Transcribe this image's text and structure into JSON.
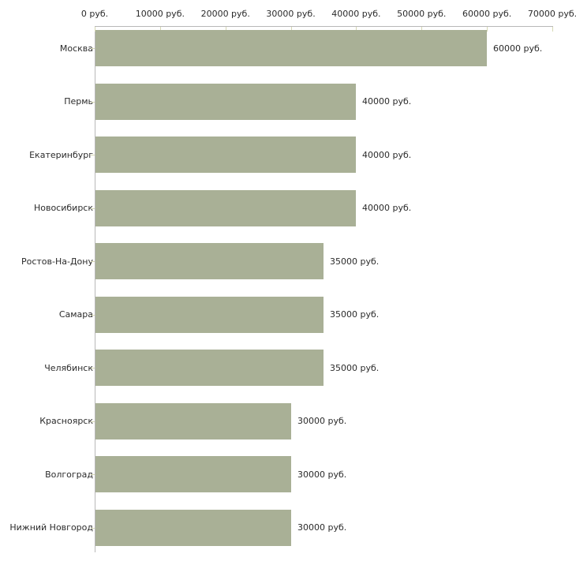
{
  "chart_data": {
    "type": "bar",
    "orientation": "horizontal",
    "title": "",
    "xlabel": "",
    "ylabel": "",
    "categories": [
      "Москва",
      "Пермь",
      "Екатеринбург",
      "Новосибирск",
      "Ростов-На-Дону",
      "Самара",
      "Челябинск",
      "Красноярск",
      "Волгоград",
      "Нижний Новгород"
    ],
    "values": [
      60000,
      40000,
      40000,
      40000,
      35000,
      35000,
      35000,
      30000,
      30000,
      30000
    ],
    "value_labels": [
      "60000 руб.",
      "40000 руб.",
      "40000 руб.",
      "40000 руб.",
      "35000 руб.",
      "35000 руб.",
      "35000 руб.",
      "30000 руб.",
      "30000 руб.",
      "30000 руб."
    ],
    "x_axis": {
      "position": "top",
      "min": 0,
      "max": 70000,
      "ticks": [
        0,
        10000,
        20000,
        30000,
        40000,
        50000,
        60000,
        70000
      ],
      "tick_labels": [
        "0 руб.",
        "10000 руб.",
        "20000 руб.",
        "30000 руб.",
        "40000 руб.",
        "50000 руб.",
        "60000 руб.",
        "70000 руб."
      ]
    },
    "grid": false,
    "legend": false,
    "colors": {
      "bar": "#a9b096",
      "axis_line": "#b8b8b8",
      "tick_mark": "#d6d8b4",
      "text": "#2b2b2b",
      "background": "#ffffff"
    }
  }
}
